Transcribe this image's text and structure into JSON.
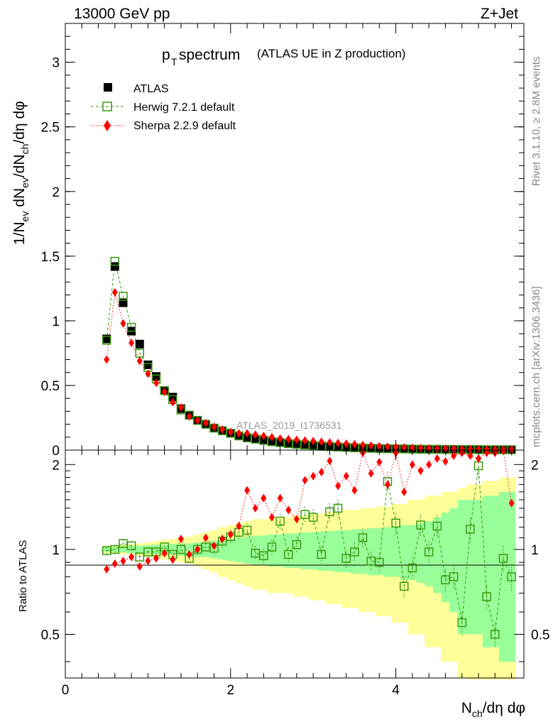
{
  "header": {
    "energy_label": "13000 GeV pp",
    "process_label": "Z+Jet"
  },
  "sidebar": {
    "rivet_label": "Rivet 3.1.10, ≥ 2.8M events",
    "mcplots_label": "mcplots.cern.ch [arXiv:1306.3436]"
  },
  "chart_data": [
    {
      "type": "scatter",
      "title_main": "p",
      "title_sub": "T",
      "title_rest": " spectrum",
      "title_note": "(ATLAS UE in Z production)",
      "watermark": "ATLAS_2019_I1736531",
      "ylabel": "1/N_ev dN_ev/dN_ch/dη dφ",
      "ylim": [
        0,
        3.3
      ],
      "xlim": [
        0,
        5.55
      ],
      "yticks": [
        "0",
        "0.5",
        "1",
        "1.5",
        "2",
        "2.5",
        "3"
      ],
      "legend": [
        {
          "name": "ATLAS",
          "color": "#000000",
          "marker": "filled-square",
          "line": "none"
        },
        {
          "name": "Herwig 7.2.1 default",
          "color": "#3a9a10",
          "marker": "open-square",
          "line": "dashed"
        },
        {
          "name": "Sherpa 2.2.9 default",
          "color": "#ff0000",
          "marker": "filled-diamond",
          "line": "dotted"
        }
      ],
      "x": [
        0.5,
        0.6,
        0.7,
        0.8,
        0.9,
        1.0,
        1.1,
        1.2,
        1.3,
        1.4,
        1.5,
        1.6,
        1.7,
        1.8,
        1.9,
        2.0,
        2.1,
        2.2,
        2.3,
        2.4,
        2.5,
        2.6,
        2.7,
        2.8,
        2.9,
        3.0,
        3.1,
        3.2,
        3.3,
        3.4,
        3.5,
        3.6,
        3.7,
        3.8,
        3.9,
        4.0,
        4.1,
        4.2,
        4.3,
        4.4,
        4.5,
        4.6,
        4.7,
        4.8,
        4.9,
        5.0,
        5.1,
        5.2,
        5.3,
        5.4
      ],
      "series": [
        {
          "name": "ATLAS",
          "values": [
            0.86,
            1.42,
            1.14,
            0.92,
            0.82,
            0.66,
            0.57,
            0.46,
            0.41,
            0.32,
            0.27,
            0.23,
            0.2,
            0.17,
            0.15,
            0.13,
            0.11,
            0.095,
            0.085,
            0.075,
            0.065,
            0.058,
            0.05,
            0.045,
            0.04,
            0.035,
            0.03,
            0.027,
            0.024,
            0.021,
            0.018,
            0.016,
            0.014,
            0.012,
            0.011,
            0.01,
            0.009,
            0.008,
            0.007,
            0.006,
            0.006,
            0.005,
            0.005,
            0.004,
            0.004,
            0.004,
            0.003,
            0.003,
            0.003,
            0.003
          ]
        },
        {
          "name": "Herwig 7.2.1 default",
          "values": [
            0.85,
            1.46,
            1.19,
            0.95,
            0.75,
            0.64,
            0.55,
            0.46,
            0.39,
            0.31,
            0.27,
            0.23,
            0.2,
            0.17,
            0.15,
            0.13,
            0.11,
            0.095,
            0.085,
            0.075,
            0.065,
            0.058,
            0.05,
            0.045,
            0.04,
            0.035,
            0.03,
            0.027,
            0.024,
            0.021,
            0.018,
            0.016,
            0.014,
            0.012,
            0.011,
            0.01,
            0.009,
            0.008,
            0.007,
            0.006,
            0.006,
            0.005,
            0.005,
            0.004,
            0.004,
            0.004,
            0.003,
            0.003,
            0.003,
            0.003
          ]
        },
        {
          "name": "Sherpa 2.2.9 default",
          "values": [
            0.7,
            1.22,
            0.98,
            0.83,
            0.69,
            0.59,
            0.52,
            0.45,
            0.37,
            0.33,
            0.26,
            0.23,
            0.21,
            0.18,
            0.16,
            0.14,
            0.13,
            0.13,
            0.12,
            0.11,
            0.1,
            0.09,
            0.085,
            0.08,
            0.075,
            0.07,
            0.065,
            0.06,
            0.055,
            0.05,
            0.045,
            0.04,
            0.035,
            0.03,
            0.027,
            0.024,
            0.021,
            0.018,
            0.016,
            0.014,
            0.012,
            0.011,
            0.01,
            0.009,
            0.008,
            0.007,
            0.006,
            0.006,
            0.005,
            0.005
          ]
        }
      ]
    },
    {
      "type": "scatter",
      "ylabel": "Ratio to ATLAS",
      "xlabel": "N_ch/dη dφ",
      "ylim": [
        0.35,
        2.25
      ],
      "xlim": [
        0,
        5.55
      ],
      "yticks": [
        "0.5",
        "1",
        "2"
      ],
      "xticks": [
        "0",
        "2",
        "4"
      ],
      "reference_line": 1,
      "x": [
        0.5,
        0.6,
        0.7,
        0.8,
        0.9,
        1.0,
        1.1,
        1.2,
        1.3,
        1.4,
        1.5,
        1.6,
        1.7,
        1.8,
        1.9,
        2.0,
        2.1,
        2.2,
        2.3,
        2.4,
        2.5,
        2.6,
        2.7,
        2.8,
        2.9,
        3.0,
        3.1,
        3.2,
        3.3,
        3.4,
        3.5,
        3.6,
        3.7,
        3.8,
        3.9,
        4.0,
        4.1,
        4.2,
        4.3,
        4.4,
        4.5,
        4.6,
        4.7,
        4.8,
        4.9,
        5.0,
        5.1,
        5.2,
        5.3,
        5.4
      ],
      "bands": {
        "stat_color": "#99ff99",
        "total_color": "#ffff99",
        "stat_halfwidth": [
          0.02,
          0.02,
          0.025,
          0.03,
          0.03,
          0.035,
          0.04,
          0.04,
          0.045,
          0.05,
          0.05,
          0.06,
          0.06,
          0.07,
          0.08,
          0.09,
          0.1,
          0.11,
          0.12,
          0.12,
          0.13,
          0.13,
          0.14,
          0.14,
          0.15,
          0.15,
          0.16,
          0.16,
          0.17,
          0.17,
          0.18,
          0.18,
          0.19,
          0.19,
          0.2,
          0.2,
          0.22,
          0.22,
          0.24,
          0.26,
          0.3,
          0.35,
          0.4,
          0.5,
          0.5,
          0.5,
          0.55,
          0.55,
          0.6,
          0.6
        ],
        "total_halfwidth": [
          0.03,
          0.035,
          0.04,
          0.045,
          0.05,
          0.06,
          0.07,
          0.08,
          0.09,
          0.1,
          0.11,
          0.13,
          0.15,
          0.17,
          0.2,
          0.22,
          0.24,
          0.26,
          0.28,
          0.28,
          0.3,
          0.3,
          0.3,
          0.32,
          0.32,
          0.34,
          0.34,
          0.36,
          0.36,
          0.38,
          0.38,
          0.4,
          0.4,
          0.42,
          0.42,
          0.45,
          0.45,
          0.5,
          0.5,
          0.55,
          0.55,
          0.6,
          0.6,
          0.65,
          0.7,
          0.7,
          0.75,
          0.75,
          0.8,
          0.8
        ]
      },
      "series": [
        {
          "name": "Herwig 7.2.1 default",
          "values": [
            0.99,
            1.0,
            1.05,
            1.03,
            0.94,
            0.98,
            0.98,
            1.02,
            0.96,
            1.0,
            0.93,
            1.0,
            1.02,
            1.01,
            1.07,
            1.11,
            1.15,
            1.17,
            0.97,
            0.95,
            1.02,
            1.26,
            0.96,
            1.04,
            1.33,
            1.3,
            0.96,
            1.36,
            1.4,
            0.93,
            0.98,
            1.1,
            0.91,
            0.9,
            1.74,
            1.24,
            0.74,
            0.86,
            1.22,
            0.98,
            1.21,
            0.78,
            0.8,
            0.55,
            1.18,
            1.98,
            0.68,
            0.5,
            0.93,
            0.8
          ]
        },
        {
          "name": "Sherpa 2.2.9 default",
          "values": [
            0.85,
            0.89,
            0.91,
            0.94,
            0.87,
            0.91,
            0.93,
            0.97,
            0.92,
            1.09,
            0.96,
            1.0,
            1.1,
            1.03,
            1.09,
            1.13,
            1.21,
            1.62,
            1.4,
            1.52,
            1.3,
            1.52,
            1.38,
            1.28,
            1.76,
            1.82,
            1.88,
            2.06,
            1.68,
            1.82,
            1.62,
            2.2,
            1.86,
            2.04,
            1.7,
            2.2,
            1.6,
            2.0,
            1.9,
            2.0,
            2.1,
            2.05,
            2.15,
            2.2,
            2.15,
            2.1,
            2.2,
            2.2,
            2.24,
            1.46
          ]
        }
      ]
    }
  ]
}
